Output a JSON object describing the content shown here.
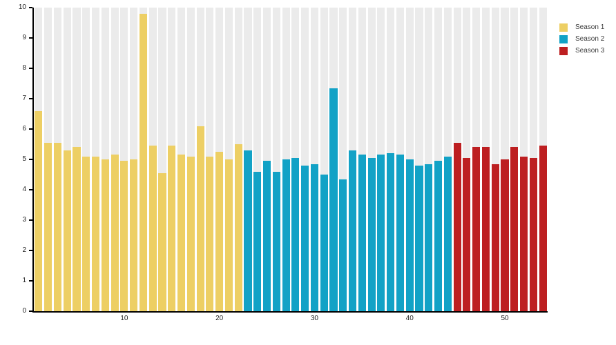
{
  "colors": {
    "page_bg": "#FFFFFF",
    "slot_bg": "#EBEBEB",
    "axis": "#000000",
    "tick_label": "#1F1F1F",
    "legend_text": "#3C3C3C"
  },
  "legend": {
    "position": "top-right",
    "items": [
      {
        "label": "Season 1",
        "color": "#EDCF64"
      },
      {
        "label": "Season 2",
        "color": "#12A2C6"
      },
      {
        "label": "Season 3",
        "color": "#BD1F21"
      }
    ]
  },
  "chart_data": {
    "type": "bar",
    "title": "",
    "xlabel": "",
    "ylabel": "",
    "x_domain": [
      1,
      54
    ],
    "ylim": [
      0,
      10
    ],
    "yticks": [
      0,
      1,
      2,
      3,
      4,
      5,
      6,
      7,
      8,
      9,
      10
    ],
    "xticks": [
      10,
      20,
      30,
      40,
      50
    ],
    "grid": false,
    "background_column_stripes": true,
    "legend_position": "top-right",
    "series": [
      {
        "name": "Season 1",
        "color": "#EDCF64",
        "episode_start": 1,
        "values": [
          6.6,
          5.55,
          5.55,
          5.3,
          5.4,
          5.1,
          5.1,
          5.0,
          5.15,
          4.95,
          5.0,
          9.8,
          5.45,
          4.55,
          5.45,
          5.15,
          5.1,
          6.1,
          5.1,
          5.25,
          5.0,
          5.5
        ]
      },
      {
        "name": "Season 2",
        "color": "#12A2C6",
        "episode_start": 23,
        "values": [
          5.3,
          4.6,
          4.95,
          4.6,
          5.0,
          5.05,
          4.8,
          4.85,
          4.5,
          7.35,
          4.35,
          5.3,
          5.15,
          5.05,
          5.15,
          5.2,
          5.15,
          5.0,
          4.8,
          4.85,
          4.95,
          5.1
        ]
      },
      {
        "name": "Season 3",
        "color": "#BD1F21",
        "episode_start": 45,
        "values": [
          5.55,
          5.05,
          5.4,
          5.4,
          4.85,
          5.0,
          5.4,
          5.1,
          5.05,
          5.45
        ]
      }
    ]
  }
}
